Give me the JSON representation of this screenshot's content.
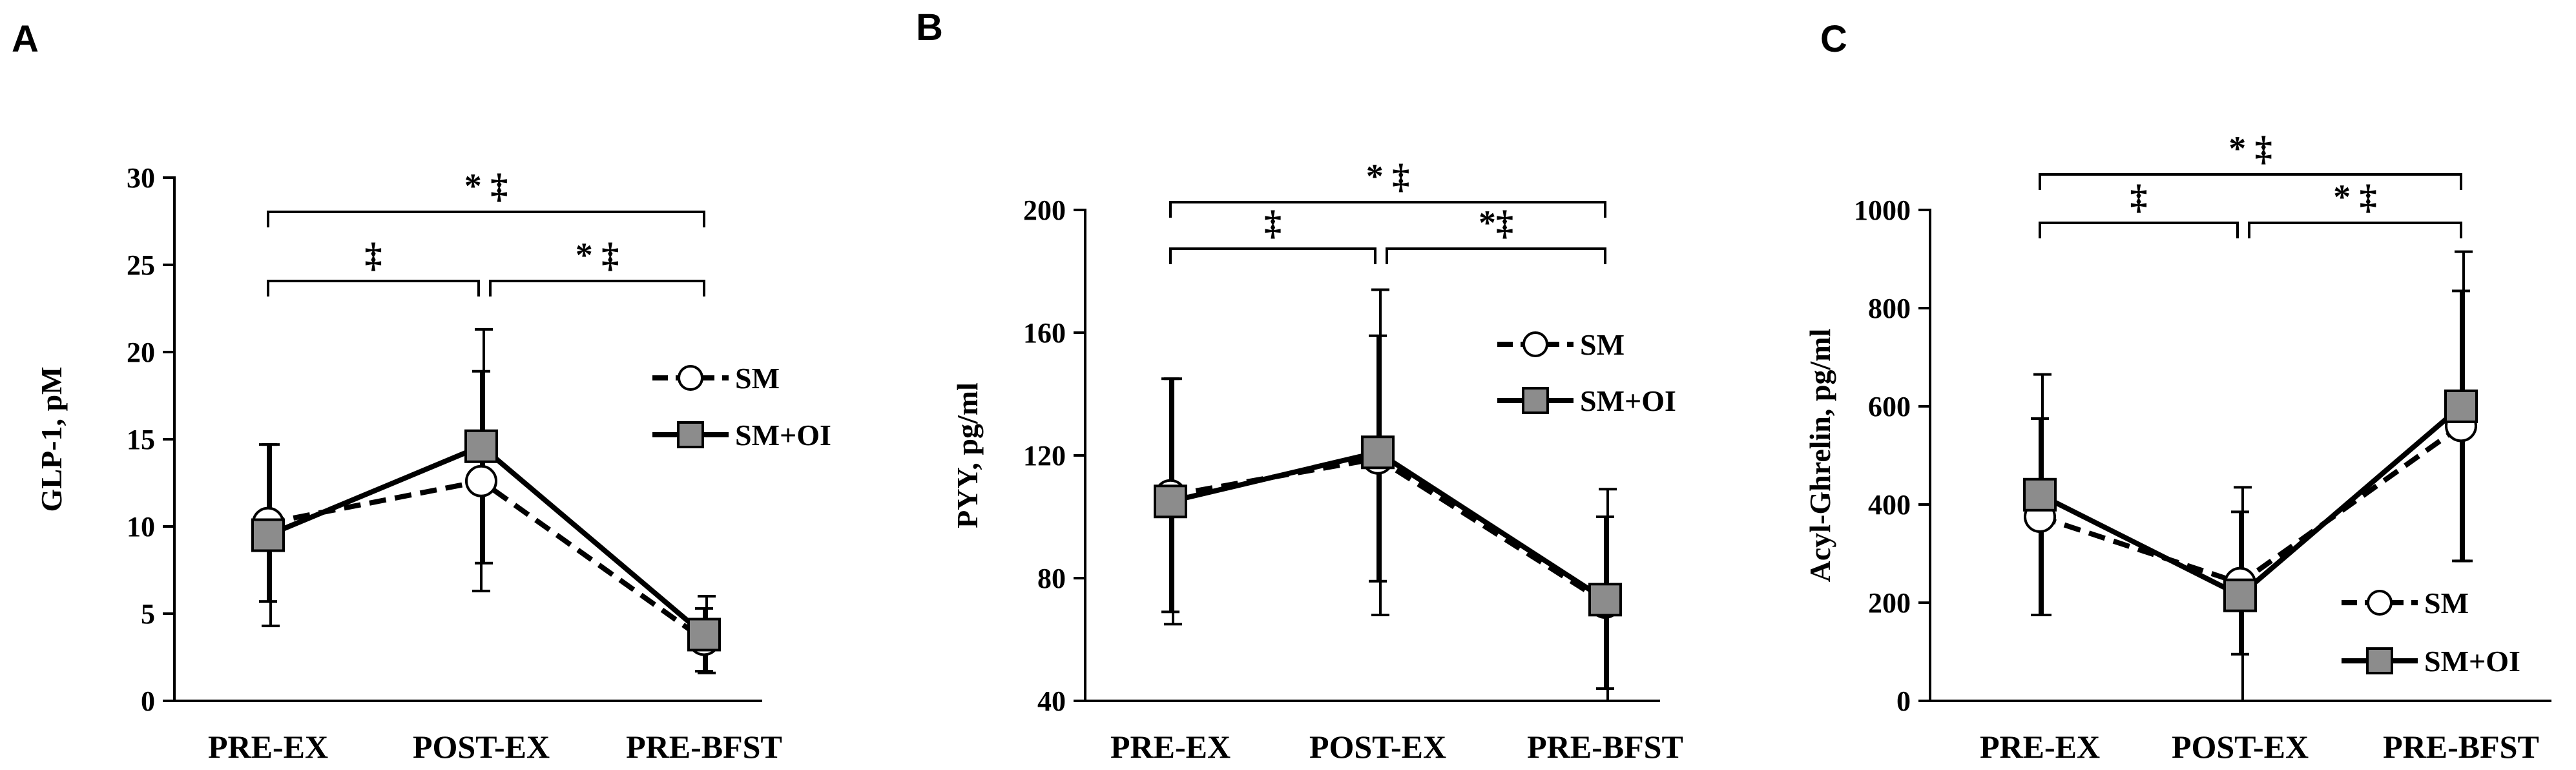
{
  "chart_data": [
    {
      "panel": "A",
      "type": "line",
      "categories": [
        "PRE-EX",
        "POST-EX",
        "PRE-BFST"
      ],
      "ylabel": "GLP-1, pM",
      "ylim": [
        0,
        30
      ],
      "yticks": [
        0,
        5,
        10,
        15,
        20,
        25,
        30
      ],
      "series": [
        {
          "name": "SM",
          "values": [
            10.2,
            12.6,
            3.5
          ],
          "err": [
            4.5,
            6.3,
            1.8
          ],
          "style": "dashed",
          "marker": "circle",
          "color": "#ffffff"
        },
        {
          "name": "SM+OI",
          "values": [
            9.5,
            14.6,
            3.8
          ],
          "err": [
            5.2,
            6.7,
            2.2
          ],
          "style": "solid",
          "marker": "square",
          "color": "#8c8c8c"
        }
      ],
      "brackets": [
        {
          "from": 0,
          "to": 1,
          "label": "‡",
          "level": 1
        },
        {
          "from": 1,
          "to": 2,
          "label": "* ‡",
          "level": 1
        },
        {
          "from": 0,
          "to": 2,
          "label": "* ‡",
          "level": 2
        }
      ],
      "legend": "right"
    },
    {
      "panel": "B",
      "type": "line",
      "categories": [
        "PRE-EX",
        "POST-EX",
        "PRE-BFST"
      ],
      "ylabel": "PYY, pg/ml",
      "ylim": [
        40,
        200
      ],
      "yticks": [
        40,
        80,
        120,
        160,
        200
      ],
      "series": [
        {
          "name": "SM",
          "values": [
            107,
            119,
            72
          ],
          "err": [
            38,
            40,
            28
          ],
          "style": "dashed",
          "marker": "circle",
          "color": "#ffffff"
        },
        {
          "name": "SM+OI",
          "values": [
            105,
            121,
            73
          ],
          "err": [
            40,
            53,
            36
          ],
          "style": "solid",
          "marker": "square",
          "color": "#8c8c8c"
        }
      ],
      "brackets": [
        {
          "from": 0,
          "to": 1,
          "label": "‡",
          "level": 1
        },
        {
          "from": 1,
          "to": 2,
          "label": "*‡",
          "level": 1
        },
        {
          "from": 0,
          "to": 2,
          "label": "* ‡",
          "level": 2
        }
      ],
      "legend": "right"
    },
    {
      "panel": "C",
      "type": "line",
      "categories": [
        "PRE-EX",
        "POST-EX",
        "PRE-BFST"
      ],
      "ylabel": "Acyl-Ghrelin, pg/ml",
      "ylim": [
        0,
        1000
      ],
      "yticks": [
        0,
        200,
        400,
        600,
        800,
        1000
      ],
      "series": [
        {
          "name": "SM",
          "values": [
            375,
            240,
            560
          ],
          "err": [
            200,
            145,
            275
          ],
          "style": "dashed",
          "marker": "circle",
          "color": "#ffffff"
        },
        {
          "name": "SM+OI",
          "values": [
            420,
            215,
            600
          ],
          "err": [
            245,
            220,
            315
          ],
          "style": "solid",
          "marker": "square",
          "color": "#8c8c8c"
        }
      ],
      "brackets": [
        {
          "from": 0,
          "to": 1,
          "label": "‡",
          "level": 1
        },
        {
          "from": 1,
          "to": 2,
          "label": "* ‡",
          "level": 1
        },
        {
          "from": 0,
          "to": 2,
          "label": "* ‡",
          "level": 2
        }
      ],
      "legend": "lower-right"
    }
  ]
}
